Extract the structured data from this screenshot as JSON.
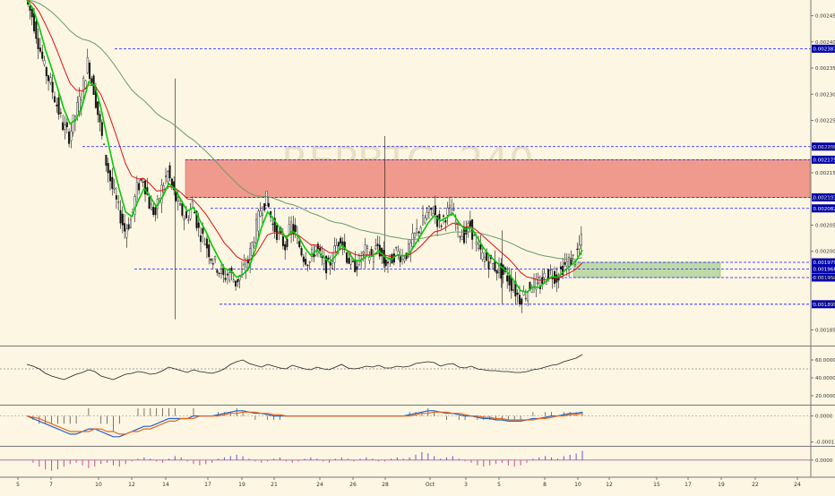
{
  "watermark": {
    "symbol": "REPBTC, 240",
    "subtitle": ""
  },
  "colors": {
    "background": "#fdf6e3",
    "candle_up": "#ffffff",
    "candle_down": "#111111",
    "ema_fast": "#00cc00",
    "ema_mid": "#dd1111",
    "ema_slow": "#6b9b6b",
    "level_line": "#1a1aff",
    "resistance_zone": "#ef9a8c",
    "support_zone": "#bfd9a8",
    "price_tag_bg": "#0000aa",
    "rsi_line": "#222222",
    "macd_line": "#1f63c8",
    "signal_line": "#e8651e",
    "histogram": "#555555",
    "osc_pos": "#6a5acd",
    "osc_neg": "#c0508a"
  },
  "chart_data": [
    {
      "type": "candlestick",
      "title": "REPBTC, 240",
      "ylim": [
        0.00182,
        0.00248
      ],
      "y_ticks": [
        "0.002450",
        "0.002400",
        "0.002350",
        "0.002300",
        "0.002250",
        "0.002200",
        "0.002150",
        "0.002100",
        "0.002050",
        "0.002000",
        "0.001950",
        "0.001900",
        "0.001850"
      ],
      "y_tick_values": [
        0.00245,
        0.0024,
        0.00235,
        0.0023,
        0.00225,
        0.0022,
        0.00215,
        0.0021,
        0.00205,
        0.002,
        0.00195,
        0.0019,
        0.00185
      ],
      "x_ticks": [
        "5",
        "7",
        "10",
        "12",
        "14",
        "17",
        "19",
        "21",
        "24",
        "26",
        "28",
        "Oct",
        "3",
        "5",
        "8",
        "10",
        "12",
        "15",
        "17",
        "19",
        "22",
        "24"
      ],
      "levels": [
        {
          "label": "0.002387",
          "value": 0.002387
        },
        {
          "label": "0.002200",
          "value": 0.0022
        },
        {
          "label": "0.002175",
          "value": 0.002175
        },
        {
          "label": "0.002103",
          "value": 0.002103
        },
        {
          "label": "0.002082",
          "value": 0.002082
        },
        {
          "label": "0.001979",
          "value": 0.001979
        },
        {
          "label": "0.001966",
          "value": 0.001966
        },
        {
          "label": "0.001950",
          "value": 0.00195
        },
        {
          "label": "0.001899",
          "value": 0.001899
        }
      ],
      "zones": [
        {
          "name": "resistance",
          "top": 0.002175,
          "bottom": 0.002103
        },
        {
          "name": "support",
          "top": 0.001979,
          "bottom": 0.00195
        }
      ],
      "close_path": [
        0.00248,
        0.00245,
        0.0024,
        0.00235,
        0.00232,
        0.00228,
        0.00224,
        0.00222,
        0.00226,
        0.0023,
        0.00236,
        0.00231,
        0.00224,
        0.00217,
        0.00212,
        0.00208,
        0.00204,
        0.00206,
        0.00212,
        0.00214,
        0.00209,
        0.00207,
        0.00212,
        0.00215,
        0.00211,
        0.00208,
        0.00206,
        0.00209,
        0.00204,
        0.00202,
        0.00199,
        0.00197,
        0.00195,
        0.00196,
        0.00194,
        0.00196,
        0.00198,
        0.00203,
        0.00208,
        0.0021,
        0.00205,
        0.00203,
        0.00201,
        0.00205,
        0.00202,
        0.00199,
        0.00198,
        0.00201,
        0.00198,
        0.00197,
        0.002,
        0.00203,
        0.00199,
        0.00197,
        0.00198,
        0.002,
        0.00199,
        0.00201,
        0.00198,
        0.00198,
        0.002,
        0.00199,
        0.002,
        0.00203,
        0.00205,
        0.00207,
        0.00208,
        0.00205,
        0.00207,
        0.00208,
        0.00204,
        0.00203,
        0.00205,
        0.00201,
        0.00199,
        0.00198,
        0.00197,
        0.00196,
        0.00195,
        0.00193,
        0.00191,
        0.00192,
        0.00194,
        0.00193,
        0.00195,
        0.00196,
        0.00195,
        0.00197,
        0.00198,
        0.00199,
        0.00202
      ],
      "series": [
        {
          "name": "",
          "kind": "ema_fast"
        },
        {
          "name": "",
          "kind": "ema_mid"
        },
        {
          "name": "",
          "kind": "ema_slow"
        }
      ]
    },
    {
      "type": "line",
      "name": "rsi",
      "ylim": [
        10,
        75
      ],
      "y_ticks": [
        "60.0000",
        "40.0000",
        "20.0000"
      ],
      "y_tick_values": [
        60,
        40,
        20
      ],
      "midline": 50,
      "values": [
        55,
        53,
        50,
        45,
        42,
        40,
        38,
        41,
        44,
        46,
        49,
        47,
        42,
        40,
        38,
        41,
        44,
        45,
        47,
        46,
        44,
        45,
        48,
        52,
        50,
        48,
        46,
        49,
        47,
        46,
        45,
        47,
        50,
        55,
        58,
        60,
        56,
        54,
        52,
        55,
        53,
        51,
        50,
        54,
        52,
        50,
        49,
        52,
        50,
        49,
        52,
        55,
        51,
        50,
        51,
        53,
        52,
        54,
        51,
        51,
        53,
        52,
        53,
        56,
        57,
        58,
        57,
        53,
        55,
        56,
        52,
        51,
        53,
        50,
        49,
        48,
        48,
        47,
        47,
        46,
        46,
        47,
        49,
        50,
        52,
        54,
        55,
        58,
        60,
        62,
        66
      ]
    },
    {
      "type": "line",
      "name": "macd",
      "ylim": [
        -0.000115,
        4e-05
      ],
      "y_ticks": [
        "0.0000",
        "-0.0001"
      ],
      "y_tick_values": [
        0,
        -0.0001
      ],
      "macd": [
        0,
        -1e-05,
        -2e-05,
        -3e-05,
        -4e-05,
        -5e-05,
        -6e-05,
        -7e-05,
        -7e-05,
        -6e-05,
        -5e-05,
        -5e-05,
        -6e-05,
        -7e-05,
        -8e-05,
        -8e-05,
        -7e-05,
        -6e-05,
        -5e-05,
        -4e-05,
        -4e-05,
        -3e-05,
        -2e-05,
        -1e-05,
        -1e-05,
        -1e-05,
        -1e-05,
        0,
        0,
        0,
        0,
        5e-06,
        1e-05,
        1.5e-05,
        2e-05,
        2e-05,
        1.5e-05,
        1e-05,
        1e-05,
        5e-06,
        0,
        0,
        0,
        0,
        0,
        0,
        0,
        0,
        0,
        0,
        0,
        0,
        0,
        0,
        0,
        0,
        0,
        0,
        0,
        0,
        0,
        0,
        5e-06,
        1e-05,
        1.5e-05,
        2e-05,
        2e-05,
        1.5e-05,
        1e-05,
        1e-05,
        5e-06,
        0,
        0,
        -5e-06,
        -1e-05,
        -1e-05,
        -1.5e-05,
        -1.5e-05,
        -2e-05,
        -2e-05,
        -2e-05,
        -1.5e-05,
        -1e-05,
        -1e-05,
        -5e-06,
        0,
        0,
        5e-06,
        1e-05,
        1e-05,
        1.5e-05
      ],
      "signal": [
        0,
        -5e-06,
        -1e-05,
        -2e-05,
        -3e-05,
        -4e-05,
        -5e-05,
        -6e-05,
        -6e-05,
        -6e-05,
        -6e-05,
        -5e-05,
        -5e-05,
        -6e-05,
        -6e-05,
        -7e-05,
        -7e-05,
        -6e-05,
        -6e-05,
        -5e-05,
        -5e-05,
        -4e-05,
        -3e-05,
        -2e-05,
        -2e-05,
        -1e-05,
        -1e-05,
        -1e-05,
        0,
        0,
        0,
        0,
        5e-06,
        1e-05,
        1e-05,
        1.5e-05,
        1.5e-05,
        1.5e-05,
        1e-05,
        1e-05,
        5e-06,
        5e-06,
        0,
        0,
        0,
        0,
        0,
        0,
        0,
        0,
        0,
        0,
        0,
        0,
        0,
        0,
        0,
        0,
        0,
        0,
        0,
        0,
        0,
        5e-06,
        1e-05,
        1e-05,
        1.5e-05,
        1.5e-05,
        1.5e-05,
        1e-05,
        1e-05,
        5e-06,
        0,
        0,
        -5e-06,
        -5e-06,
        -1e-05,
        -1e-05,
        -1.5e-05,
        -1.5e-05,
        -1.5e-05,
        -1.5e-05,
        -1.5e-05,
        -1e-05,
        -1e-05,
        -5e-06,
        0,
        0,
        5e-06,
        5e-06,
        1e-05
      ]
    },
    {
      "type": "bar",
      "name": "oscillator",
      "ylim": [
        -1,
        1
      ],
      "y_ticks": [
        "0.0000"
      ],
      "y_tick_values": [
        0
      ],
      "values": [
        0,
        -0.2,
        -0.5,
        -0.7,
        -0.8,
        -0.7,
        -0.5,
        -0.3,
        -0.2,
        -0.4,
        -0.6,
        -0.5,
        -0.3,
        -0.2,
        -0.4,
        -0.5,
        -0.3,
        -0.1,
        0.1,
        0.2,
        0.1,
        -0.1,
        -0.2,
        0.1,
        0.3,
        0.2,
        -0.1,
        -0.3,
        -0.4,
        -0.3,
        -0.2,
        0.1,
        0.2,
        0.3,
        0.4,
        0.3,
        0.1,
        -0.1,
        -0.2,
        -0.1,
        0.1,
        0.2,
        -0.1,
        -0.2,
        -0.1,
        0.1,
        0.2,
        0.1,
        -0.1,
        -0.2,
        0.1,
        0.2,
        0.1,
        -0.1,
        0.1,
        0.2,
        0.1,
        -0.1,
        -0.1,
        0.1,
        0.2,
        0.1,
        0.2,
        0.4,
        0.6,
        0.5,
        0.3,
        0.1,
        0.2,
        0.3,
        0.1,
        -0.1,
        -0.2,
        -0.4,
        -0.5,
        -0.4,
        -0.3,
        -0.2,
        -0.4,
        -0.5,
        -0.4,
        -0.2,
        0.1,
        0.2,
        0.3,
        0.2,
        0.1,
        0.3,
        0.4,
        0.5,
        0.7
      ]
    }
  ]
}
